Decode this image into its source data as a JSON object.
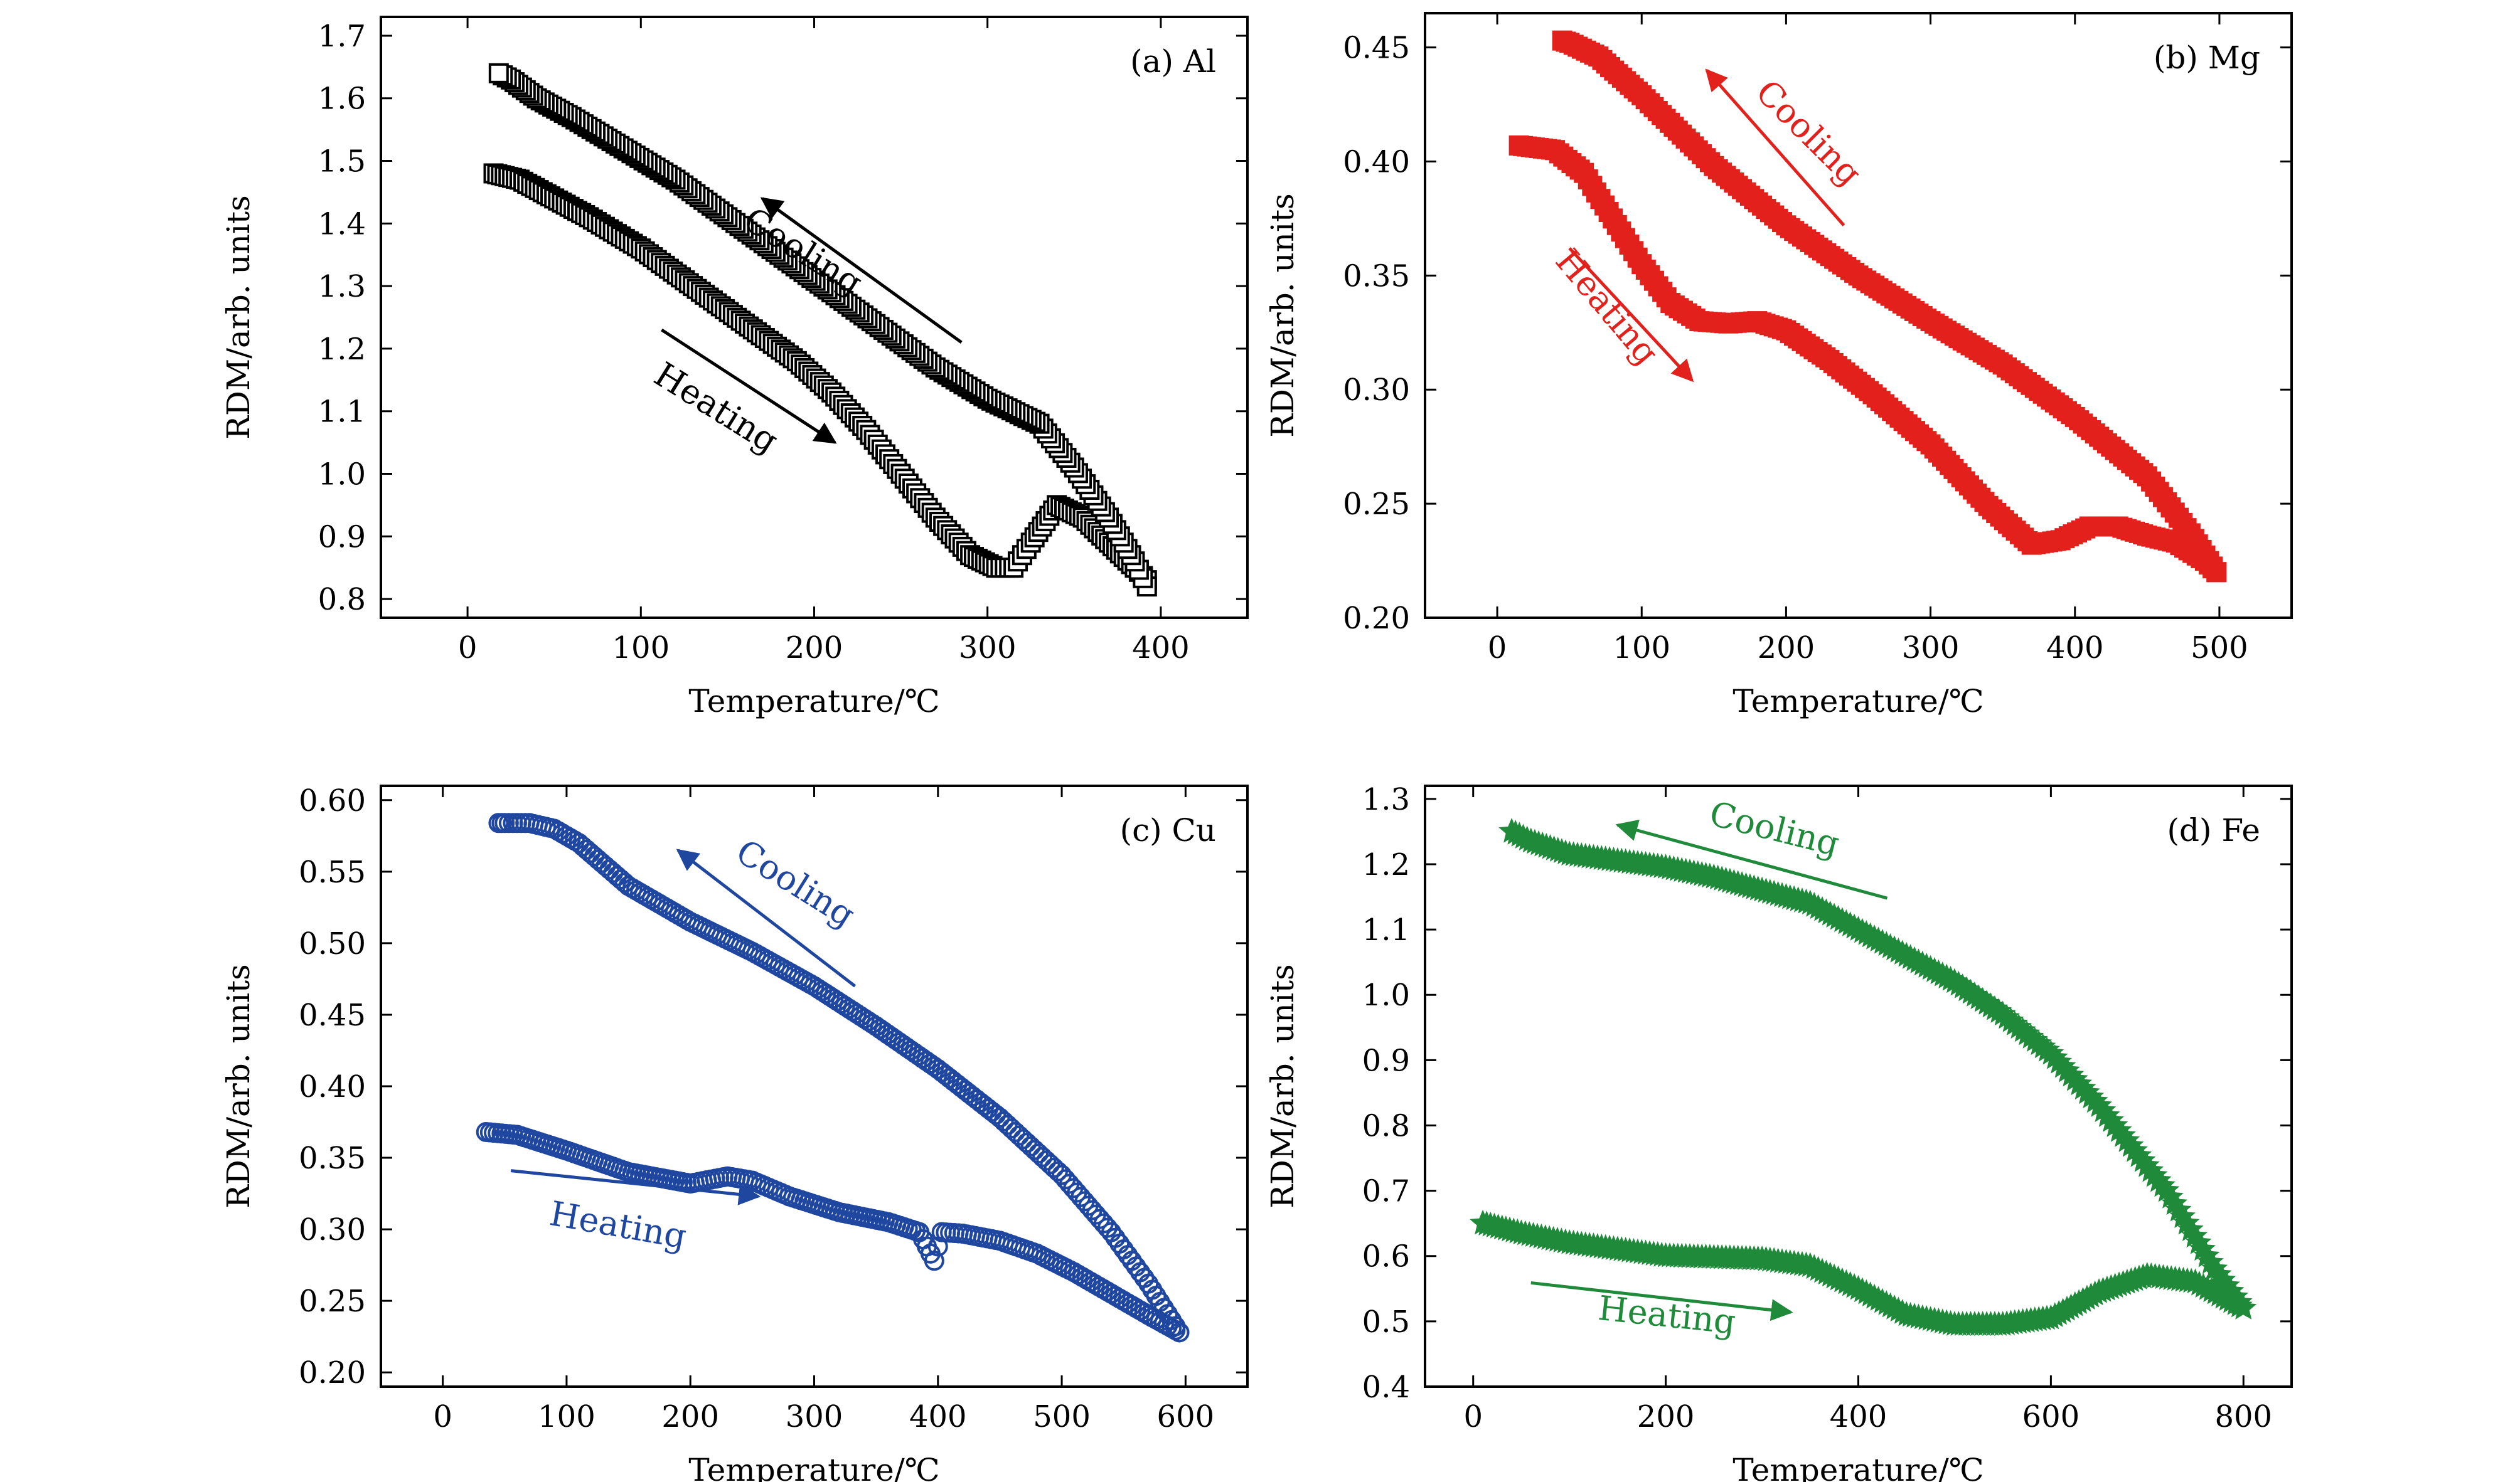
{
  "chart_data": [
    {
      "type": "scatter",
      "panel_label": "(a) Al",
      "color": "#000000",
      "marker": "square",
      "xlabel": "Temperature/℃",
      "ylabel": "RDM/arb. units",
      "xlim": [
        -50,
        450
      ],
      "ylim": [
        0.77,
        1.73
      ],
      "xticks": [
        0,
        100,
        200,
        300,
        400
      ],
      "yticks": [
        0.8,
        0.9,
        1.0,
        1.1,
        1.2,
        1.3,
        1.4,
        1.5,
        1.6,
        1.7
      ],
      "ytick_labels": [
        "0.8",
        "0.9",
        "1.0",
        "1.1",
        "1.2",
        "1.3",
        "1.4",
        "1.5",
        "1.6",
        "1.7"
      ],
      "series": [
        {
          "name": "Heating",
          "x": [
            15,
            30,
            50,
            70,
            100,
            130,
            160,
            190,
            210,
            230,
            250,
            270,
            290,
            305,
            315,
            325,
            340,
            355,
            370,
            385,
            392
          ],
          "y": [
            1.48,
            1.47,
            1.44,
            1.41,
            1.36,
            1.3,
            1.24,
            1.18,
            1.13,
            1.07,
            1.0,
            0.93,
            0.87,
            0.85,
            0.85,
            0.89,
            0.95,
            0.93,
            0.89,
            0.85,
            0.83
          ]
        },
        {
          "name": "Cooling",
          "x": [
            392,
            385,
            370,
            350,
            330,
            300,
            270,
            240,
            210,
            180,
            150,
            120,
            90,
            60,
            40,
            25,
            18
          ],
          "y": [
            0.82,
            0.86,
            0.93,
            1.01,
            1.08,
            1.12,
            1.17,
            1.23,
            1.29,
            1.35,
            1.41,
            1.47,
            1.52,
            1.57,
            1.6,
            1.63,
            1.64
          ]
        }
      ],
      "annotations": [
        {
          "text": "Cooling",
          "x": 190,
          "y": 1.34,
          "angle": 32
        },
        {
          "text": "Heating",
          "x": 140,
          "y": 1.09,
          "angle": 32
        }
      ],
      "arrows": [
        {
          "from": [
            285,
            1.21
          ],
          "to": [
            170,
            1.44
          ]
        },
        {
          "from": [
            112,
            1.23
          ],
          "to": [
            212,
            1.05
          ]
        }
      ]
    },
    {
      "type": "scatter",
      "panel_label": "(b) Mg",
      "color": "#e3211c",
      "marker": "square-filled",
      "xlabel": "Temperature/℃",
      "ylabel": "RDM/arb. units",
      "xlim": [
        -50,
        550
      ],
      "ylim": [
        0.2,
        0.465
      ],
      "xticks": [
        0,
        100,
        200,
        300,
        400,
        500
      ],
      "yticks": [
        0.2,
        0.25,
        0.3,
        0.35,
        0.4,
        0.45
      ],
      "ytick_labels": [
        "0.20",
        "0.25",
        "0.30",
        "0.35",
        "0.40",
        "0.45"
      ],
      "series": [
        {
          "name": "Heating",
          "x": [
            15,
            40,
            60,
            80,
            100,
            120,
            140,
            160,
            180,
            200,
            230,
            260,
            300,
            340,
            370,
            390,
            410,
            430,
            450,
            470,
            490,
            498
          ],
          "y": [
            0.407,
            0.405,
            0.395,
            0.375,
            0.355,
            0.338,
            0.33,
            0.329,
            0.33,
            0.326,
            0.313,
            0.298,
            0.276,
            0.249,
            0.232,
            0.234,
            0.24,
            0.24,
            0.236,
            0.233,
            0.225,
            0.22
          ]
        },
        {
          "name": "Cooling",
          "x": [
            498,
            480,
            450,
            400,
            350,
            300,
            250,
            200,
            150,
            100,
            70,
            50,
            45
          ],
          "y": [
            0.22,
            0.237,
            0.262,
            0.288,
            0.311,
            0.33,
            0.35,
            0.372,
            0.398,
            0.429,
            0.446,
            0.452,
            0.453
          ]
        }
      ],
      "annotations": [
        {
          "text": "Cooling",
          "x": 210,
          "y": 0.409,
          "angle": 45
        },
        {
          "text": "Heating",
          "x": 70,
          "y": 0.333,
          "angle": 50
        }
      ],
      "arrows": [
        {
          "from": [
            240,
            0.372
          ],
          "to": [
            145,
            0.44
          ]
        },
        {
          "from": [
            50,
            0.362
          ],
          "to": [
            135,
            0.304
          ]
        }
      ]
    },
    {
      "type": "scatter",
      "panel_label": "(c) Cu",
      "color": "#1f47a0",
      "marker": "circle",
      "xlabel": "Temperature/℃",
      "ylabel": "RDM/arb. units",
      "xlim": [
        -50,
        650
      ],
      "ylim": [
        0.19,
        0.61
      ],
      "xticks": [
        0,
        100,
        200,
        300,
        400,
        500,
        600
      ],
      "yticks": [
        0.2,
        0.25,
        0.3,
        0.35,
        0.4,
        0.45,
        0.5,
        0.55,
        0.6
      ],
      "ytick_labels": [
        "0.20",
        "0.25",
        "0.30",
        "0.35",
        "0.40",
        "0.45",
        "0.50",
        "0.55",
        "0.60"
      ],
      "series": [
        {
          "name": "Heating",
          "x": [
            35,
            60,
            100,
            150,
            200,
            230,
            250,
            280,
            320,
            360,
            385,
            397,
            403,
            420,
            450,
            480,
            510,
            540,
            570,
            595
          ],
          "y": [
            0.368,
            0.366,
            0.355,
            0.34,
            0.332,
            0.337,
            0.334,
            0.323,
            0.312,
            0.305,
            0.298,
            0.278,
            0.298,
            0.297,
            0.292,
            0.283,
            0.27,
            0.255,
            0.24,
            0.228
          ]
        },
        {
          "name": "Cooling",
          "x": [
            595,
            570,
            540,
            500,
            450,
            400,
            350,
            300,
            250,
            200,
            150,
            110,
            90,
            70,
            50,
            45
          ],
          "y": [
            0.228,
            0.262,
            0.298,
            0.338,
            0.378,
            0.412,
            0.442,
            0.47,
            0.494,
            0.515,
            0.54,
            0.57,
            0.58,
            0.584,
            0.584,
            0.584
          ]
        }
      ],
      "annotations": [
        {
          "text": "Cooling",
          "x": 280,
          "y": 0.535,
          "angle": 32
        },
        {
          "text": "Heating",
          "x": 140,
          "y": 0.295,
          "angle": 10
        }
      ],
      "arrows": [
        {
          "from": [
            333,
            0.47
          ],
          "to": [
            190,
            0.565
          ]
        },
        {
          "from": [
            55,
            0.341
          ],
          "to": [
            255,
            0.323
          ]
        }
      ]
    },
    {
      "type": "scatter",
      "panel_label": "(d) Fe",
      "color": "#1f8a3a",
      "marker": "star",
      "xlabel": "Temperature/℃",
      "ylabel": "RDM/arb. units",
      "xlim": [
        -50,
        850
      ],
      "ylim": [
        0.4,
        1.32
      ],
      "xticks": [
        0,
        200,
        400,
        600,
        800
      ],
      "yticks": [
        0.4,
        0.5,
        0.6,
        0.7,
        0.8,
        0.9,
        1.0,
        1.1,
        1.2,
        1.3
      ],
      "ytick_labels": [
        "0.4",
        "0.5",
        "0.6",
        "0.7",
        "0.8",
        "0.9",
        "1.0",
        "1.1",
        "1.2",
        "1.3"
      ],
      "series": [
        {
          "name": "Heating",
          "x": [
            10,
            50,
            100,
            200,
            300,
            350,
            400,
            450,
            500,
            550,
            600,
            650,
            700,
            750,
            800
          ],
          "y": [
            0.65,
            0.635,
            0.62,
            0.6,
            0.595,
            0.585,
            0.55,
            0.51,
            0.495,
            0.495,
            0.505,
            0.545,
            0.57,
            0.56,
            0.52
          ]
        },
        {
          "name": "Cooling",
          "x": [
            800,
            770,
            720,
            650,
            600,
            550,
            500,
            450,
            400,
            350,
            300,
            250,
            200,
            150,
            100,
            60,
            40
          ],
          "y": [
            0.52,
            0.58,
            0.7,
            0.83,
            0.91,
            0.97,
            1.02,
            1.06,
            1.1,
            1.14,
            1.16,
            1.18,
            1.195,
            1.205,
            1.215,
            1.235,
            1.25
          ]
        }
      ],
      "annotations": [
        {
          "text": "Cooling",
          "x": 310,
          "y": 1.237,
          "angle": 14
        },
        {
          "text": "Heating",
          "x": 200,
          "y": 0.492,
          "angle": 6
        }
      ],
      "arrows": [
        {
          "from": [
            430,
            1.148
          ],
          "to": [
            150,
            1.26
          ]
        },
        {
          "from": [
            60,
            0.559
          ],
          "to": [
            330,
            0.514
          ]
        }
      ]
    }
  ]
}
